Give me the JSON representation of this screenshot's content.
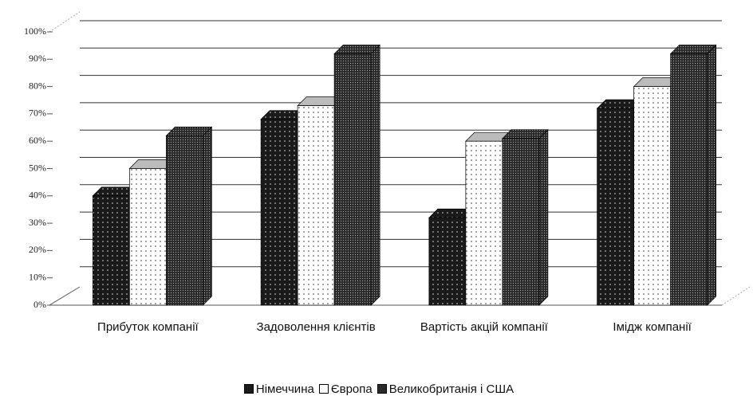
{
  "chart_data": {
    "type": "bar3d",
    "categories": [
      "Прибуток компанії",
      "Задоволення клієнтів",
      "Вартість акцій компанії",
      "Імідж компанії"
    ],
    "series": [
      {
        "name": "Німеччина",
        "color": "#1a1a1a",
        "values": [
          40,
          68,
          32,
          72
        ]
      },
      {
        "name": "Європа",
        "color": "#ffffff",
        "values": [
          50,
          73,
          60,
          80
        ]
      },
      {
        "name": "Великобританія і США",
        "color": "#2a2a2a",
        "values": [
          62,
          92,
          61,
          92
        ]
      }
    ],
    "ylim": [
      0,
      100
    ],
    "yticks": [
      {
        "value": 0,
        "label": "0%"
      },
      {
        "value": 10,
        "label": "10%"
      },
      {
        "value": 20,
        "label": "20%"
      },
      {
        "value": 30,
        "label": "30%"
      },
      {
        "value": 40,
        "label": "40%"
      },
      {
        "value": 50,
        "label": "50%"
      },
      {
        "value": 60,
        "label": "60%"
      },
      {
        "value": 70,
        "label": "70%"
      },
      {
        "value": 80,
        "label": "80%"
      },
      {
        "value": 90,
        "label": "90%"
      },
      {
        "value": 100,
        "label": "100%"
      }
    ],
    "grid": true,
    "legend": "bottom"
  }
}
